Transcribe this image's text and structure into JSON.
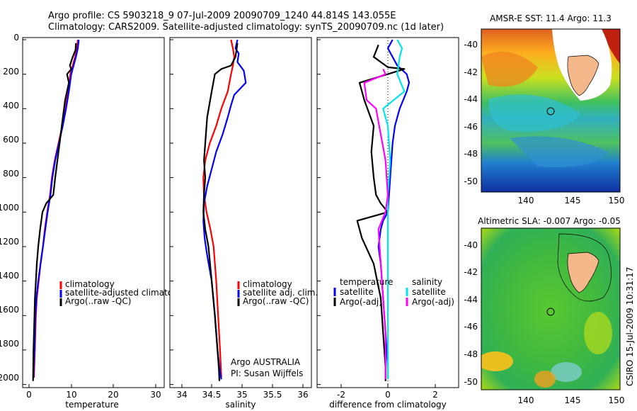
{
  "header": {
    "line1": "Argo profile: CS 5903218_9 07-Jul-2009 20090709_1240 44.814S 143.055E",
    "line2": "Climatology: CARS2009. Satellite-adjusted climatology: synTS_20090709.nc (1d later)"
  },
  "colors": {
    "climatology": "#ff0000",
    "satellite": "#0000ff",
    "argo": "#000000",
    "salinity": "#00e5ee",
    "salinity_adj": "#ff00ff"
  },
  "side_text": "CSIRO 15-Jul-2009 10:31:17",
  "chart_data": [
    {
      "type": "line",
      "xlabel": "temperature",
      "xlim": [
        0,
        30
      ],
      "ylim": [
        2000,
        0
      ],
      "x_ticks": [
        "0",
        "10",
        "20",
        "30"
      ],
      "y_ticks": [
        "0",
        "200",
        "400",
        "600",
        "800",
        "1000",
        "1200",
        "1400",
        "1600",
        "1800",
        "2000"
      ],
      "legend": [
        "climatology",
        "satellite-adjusted climatolog",
        "Argo(..raw -QC)"
      ],
      "series": [
        {
          "name": "climatology",
          "color": "#ff0000",
          "x": [
            11.7,
            11.5,
            11.1,
            10.6,
            10.1,
            9.6,
            9.1,
            8.4,
            7.6,
            6.8,
            6.2,
            5.8,
            5.2,
            4.7,
            4.3,
            3.8,
            3.4,
            3.0,
            2.8,
            2.6,
            2.4
          ],
          "y": [
            0,
            50,
            100,
            150,
            200,
            300,
            400,
            500,
            600,
            700,
            800,
            900,
            1000,
            1100,
            1200,
            1300,
            1400,
            1500,
            1600,
            1800,
            1960
          ]
        },
        {
          "name": "satellite-adjusted climatology",
          "color": "#0000ff",
          "x": [
            11.9,
            11.7,
            11.3,
            10.8,
            10.3,
            9.8,
            9.2,
            8.5,
            7.7,
            6.9,
            6.3,
            5.9,
            5.3,
            4.8,
            4.3,
            3.8,
            3.3,
            2.9,
            2.7,
            2.5,
            2.3
          ],
          "y": [
            0,
            50,
            100,
            150,
            200,
            300,
            400,
            500,
            600,
            700,
            800,
            900,
            1000,
            1100,
            1200,
            1300,
            1400,
            1500,
            1600,
            1800,
            1960
          ]
        },
        {
          "name": "Argo(..raw -QC)",
          "color": "#000000",
          "x": [
            11.3,
            11.2,
            10.6,
            10.0,
            10.3,
            9.4,
            9.8,
            9.0,
            8.3,
            7.6,
            6.9,
            6.5,
            5.0,
            4.2,
            3.7,
            3.3,
            3.0,
            2.8,
            2.6,
            2.5,
            2.4,
            2.3,
            2.2
          ],
          "y": [
            20,
            60,
            100,
            150,
            170,
            200,
            250,
            350,
            500,
            650,
            800,
            900,
            950,
            1000,
            1100,
            1200,
            1300,
            1400,
            1500,
            1600,
            1700,
            1800,
            1980
          ]
        }
      ]
    },
    {
      "type": "line",
      "xlabel": "salinity",
      "xlim": [
        33.9,
        36.1
      ],
      "ylim": [
        2000,
        0
      ],
      "x_ticks": [
        "34",
        "34.5",
        "35",
        "35.5",
        "36"
      ],
      "legend": [
        "climatology",
        "satellite adj. clim.",
        "Argo(..raw -QC)"
      ],
      "annotation": [
        "Argo AUSTRALIA",
        "PI: Susan Wijffels"
      ],
      "series": [
        {
          "name": "climatology",
          "color": "#ff0000",
          "x": [
            34.85,
            34.88,
            34.9,
            34.88,
            34.85,
            34.8,
            34.7,
            34.62,
            34.52,
            34.45,
            34.42,
            34.43,
            34.47,
            34.53,
            34.58,
            34.62,
            34.65,
            34.68,
            34.7
          ],
          "y": [
            0,
            50,
            100,
            150,
            200,
            300,
            400,
            500,
            600,
            700,
            800,
            900,
            1000,
            1100,
            1200,
            1400,
            1600,
            1800,
            1960
          ]
        },
        {
          "name": "satellite adj. clim.",
          "color": "#0000ff",
          "x": [
            34.95,
            34.92,
            34.97,
            34.95,
            35.05,
            35.08,
            34.9,
            34.85,
            34.8,
            34.72,
            34.62,
            34.55,
            34.48,
            34.43,
            34.42,
            34.44,
            34.48,
            34.55,
            34.6,
            34.64,
            34.67,
            34.7
          ],
          "y": [
            0,
            50,
            80,
            130,
            180,
            250,
            320,
            380,
            450,
            550,
            650,
            750,
            850,
            950,
            1050,
            1150,
            1250,
            1400,
            1600,
            1800,
            1900,
            1970
          ]
        },
        {
          "name": "Argo(..raw -QC)",
          "color": "#000000",
          "x": [
            34.95,
            34.92,
            34.85,
            34.7,
            34.6,
            34.55,
            34.48,
            34.45,
            34.43,
            34.45,
            34.43,
            34.42,
            34.45,
            34.5,
            34.55,
            34.6,
            34.64,
            34.66,
            34.67
          ],
          "y": [
            20,
            100,
            150,
            170,
            200,
            300,
            450,
            600,
            700,
            800,
            900,
            1000,
            1100,
            1200,
            1400,
            1600,
            1800,
            1900,
            1980
          ]
        }
      ]
    },
    {
      "type": "line",
      "xlabel": "difference from climatology",
      "xlim": [
        -3,
        3
      ],
      "ylim": [
        2000,
        0
      ],
      "x_ticks": [
        "-2",
        "0",
        "2"
      ],
      "legend_titles": [
        "temperature",
        "salinity"
      ],
      "legend": [
        "satellite",
        "Argo(-adj)",
        "satellite",
        "Argo(-adj)"
      ],
      "series": [
        {
          "name": "temperature satellite",
          "color": "#0000ff",
          "x": [
            0.2,
            0.0,
            0.4,
            0.8,
            0.9,
            0.8,
            0.5,
            0.3,
            0.2,
            0.1,
            0.0,
            -0.2,
            -0.3,
            -0.4,
            -0.3,
            -0.2,
            -0.1,
            0.0,
            0.0
          ],
          "y": [
            0,
            50,
            150,
            200,
            250,
            300,
            400,
            500,
            600,
            800,
            1000,
            1050,
            1100,
            1200,
            1300,
            1500,
            1700,
            1900,
            1960
          ]
        },
        {
          "name": "temperature Argo(-adj)",
          "color": "#000000",
          "x": [
            -0.4,
            -0.6,
            0.0,
            0.7,
            -1.2,
            -1.0,
            -0.6,
            -0.7,
            -0.6,
            -0.5,
            -0.3,
            0.0,
            -1.3,
            -1.1,
            -0.6,
            -0.3,
            -0.2,
            -0.1,
            -0.1
          ],
          "y": [
            30,
            100,
            160,
            170,
            250,
            350,
            500,
            650,
            800,
            900,
            950,
            1000,
            1050,
            1150,
            1300,
            1500,
            1700,
            1900,
            1980
          ]
        },
        {
          "name": "salinity satellite",
          "color": "#00e5ee",
          "x": [
            0.4,
            0.6,
            0.5,
            0.4,
            0.7,
            -0.2,
            0.0,
            0.1,
            0.0,
            0.0,
            0.0,
            0.0,
            0.0
          ],
          "y": [
            0,
            50,
            100,
            200,
            300,
            400,
            500,
            700,
            900,
            1100,
            1400,
            1700,
            1970
          ]
        },
        {
          "name": "salinity Argo(-adj)",
          "color": "#ff00ff",
          "x": [
            -0.2,
            -0.1,
            -1.0,
            -0.9,
            -0.5,
            -0.3,
            -0.1,
            0.0,
            -0.1,
            -0.4,
            -0.3,
            -0.2,
            -0.1,
            -0.1
          ],
          "y": [
            170,
            200,
            250,
            350,
            400,
            550,
            700,
            900,
            1000,
            1100,
            1300,
            1500,
            1700,
            1970
          ]
        }
      ]
    },
    {
      "type": "heatmap",
      "title": "AMSR-E SST: 11.4 Argo: 11.3",
      "x_ticks": [
        "140",
        "145",
        "150"
      ],
      "y_ticks": [
        "-40",
        "-42",
        "-44",
        "-46",
        "-48",
        "-50"
      ],
      "marker": {
        "lon": 143.055,
        "lat": -44.814
      }
    },
    {
      "type": "heatmap",
      "title": "Altimetric SLA: -0.007 Argo: -0.05",
      "x_ticks": [
        "140",
        "145",
        "150"
      ],
      "y_ticks": [
        "-40",
        "-42",
        "-44",
        "-46",
        "-48",
        "-50"
      ],
      "marker": {
        "lon": 143.055,
        "lat": -44.814
      }
    }
  ]
}
